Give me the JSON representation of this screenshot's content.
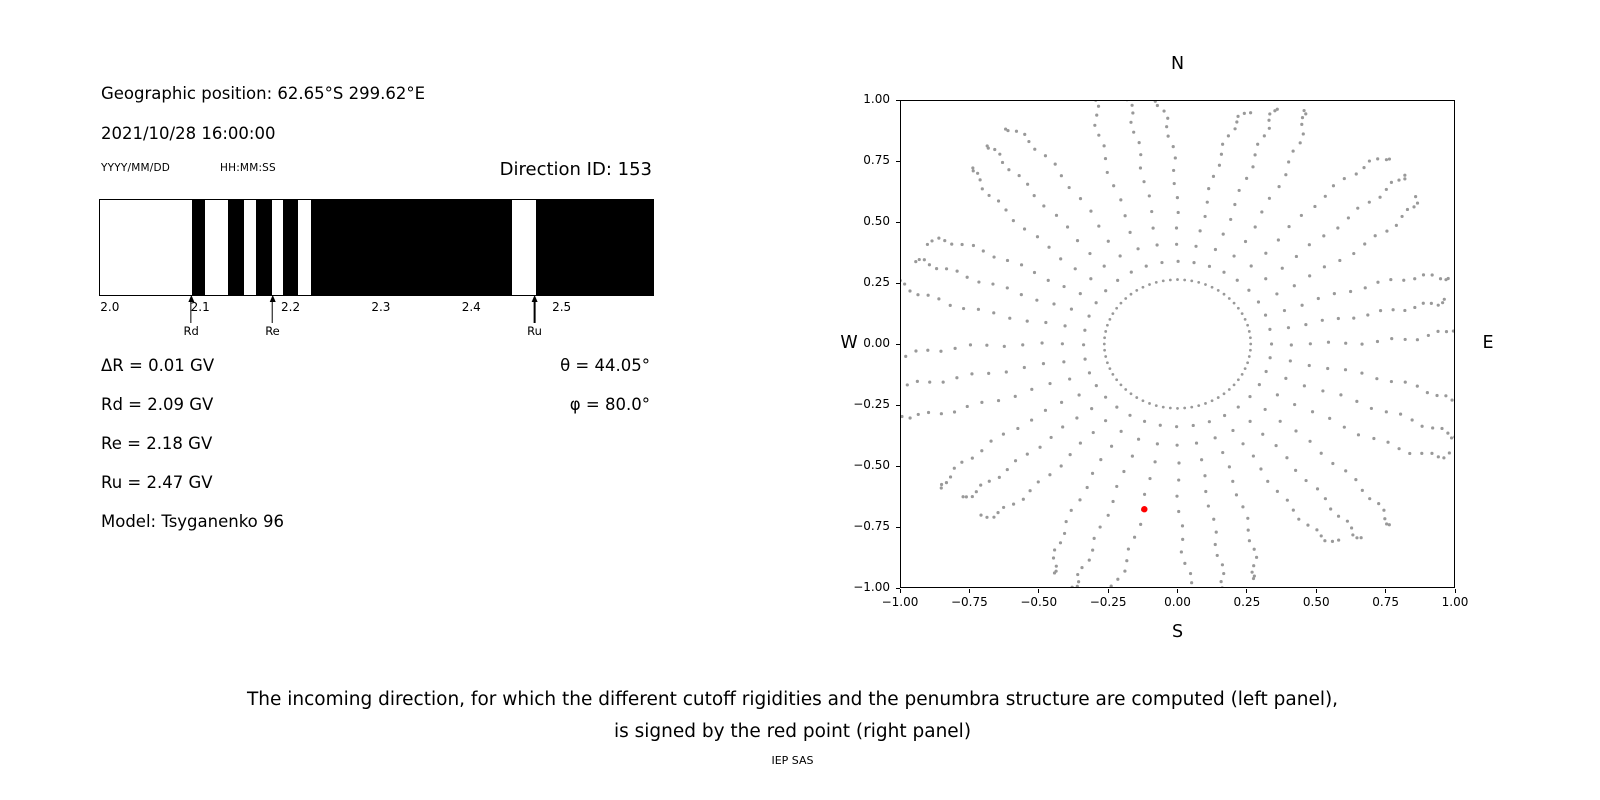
{
  "left_panel": {
    "geo_position": "Geographic position: 62.65°S 299.62°E",
    "datetime": "2021/10/28 16:00:00",
    "date_format_label": "YYYY/MM/DD",
    "time_format_label": "HH:MM:SS",
    "direction_id": "Direction ID: 153",
    "delta_r": "ΔR = 0.01 GV",
    "rd": "Rd = 2.09 GV",
    "re": "Re = 2.18 GV",
    "ru": "Ru = 2.47 GV",
    "model": "Model: Tsyganenko 96",
    "theta": "θ = 44.05°",
    "phi": "φ = 80.0°"
  },
  "caption": {
    "line1": "The incoming direction, for which the different cutoff rigidities and the penumbra structure are computed (left panel),",
    "line2": "is signed by the red point (right panel)",
    "credit": "IEP SAS"
  },
  "chart_data": [
    {
      "id": "penumbra-structure",
      "type": "bar",
      "xlim": [
        1.988,
        2.6
      ],
      "xtick_values": [
        2.0,
        2.1,
        2.2,
        2.3,
        2.4,
        2.5
      ],
      "xtick_labels": [
        "2.0",
        "2.1",
        "2.2",
        "2.3",
        "2.4",
        "2.5"
      ],
      "forbidden_segments_gv": [
        [
          2.09,
          2.104
        ],
        [
          2.13,
          2.147
        ],
        [
          2.161,
          2.178
        ],
        [
          2.191,
          2.207
        ],
        [
          2.221,
          2.444
        ],
        [
          2.47,
          2.6
        ]
      ],
      "markers": [
        {
          "label": "Rd",
          "value_gv": 2.09
        },
        {
          "label": "Re",
          "value_gv": 2.18
        },
        {
          "label": "Ru",
          "value_gv": 2.47
        }
      ],
      "bar_color": "#000000",
      "background_color": "#ffffff"
    },
    {
      "id": "incoming-direction-map",
      "type": "scatter",
      "xlim": [
        -1,
        1
      ],
      "ylim": [
        -1,
        1
      ],
      "xtick_values": [
        -1,
        -0.75,
        -0.5,
        -0.25,
        0,
        0.25,
        0.5,
        0.75,
        1
      ],
      "xtick_labels": [
        "−1.00",
        "−0.75",
        "−0.50",
        "−0.25",
        "0.00",
        "0.25",
        "0.50",
        "0.75",
        "1.00"
      ],
      "ytick_values": [
        1,
        0.75,
        0.5,
        0.25,
        0,
        -0.25,
        -0.5,
        -0.75,
        -1
      ],
      "ytick_labels": [
        "1.00",
        "0.75",
        "0.50",
        "0.25",
        "0.00",
        "−0.25",
        "−0.50",
        "−0.75",
        "−1.00"
      ],
      "compass_labels": {
        "top": "N",
        "right": "E",
        "bottom": "S",
        "left": "W"
      },
      "gray_pattern": {
        "dot_color": "#999999",
        "inner_ring": {
          "radius": 0.265,
          "count": 64
        },
        "spokes": {
          "count": 36,
          "start_deg": 0,
          "step_deg": 10,
          "inner_radius": 0.34,
          "outer_radius": 1.05,
          "dots_per_spoke": 16,
          "outer_density_power": 1.6
        }
      },
      "red_point": {
        "x": -0.12,
        "y": -0.68,
        "color": "#ff0000"
      }
    }
  ]
}
